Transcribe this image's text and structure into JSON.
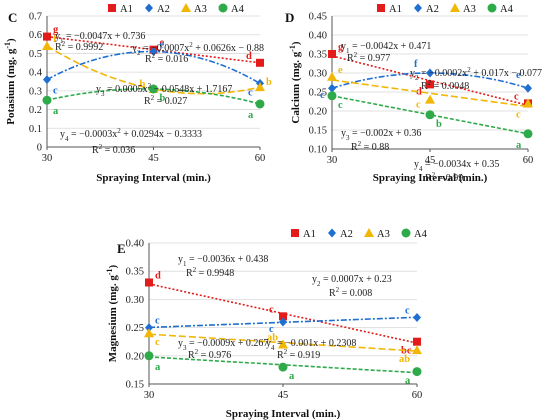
{
  "colors": {
    "A1": "#e31b1b",
    "A2": "#1f6fd1",
    "A3": "#f2b705",
    "A4": "#2eaa4a",
    "axis": "#555555",
    "grid": "#d9d9d9"
  },
  "chart_data": [
    {
      "panel": "C",
      "type": "line",
      "x": [
        30,
        45,
        60
      ],
      "xlabel": "Spraying Interval (min.)",
      "ylabel": "Potasium (mg. g-1)",
      "ylim": [
        0,
        0.7
      ],
      "yticks": [
        "0",
        "0.1",
        "0.2",
        "0.3",
        "0.4",
        "0.5",
        "0.6",
        "0.7"
      ],
      "xticks": [
        "30",
        "45",
        "60"
      ],
      "grid": true,
      "legend": "top-right",
      "series": [
        {
          "name": "A1",
          "marker": "square",
          "values": [
            0.59,
            0.52,
            0.45
          ],
          "letters": [
            "g",
            "e",
            "d"
          ],
          "trend": "linear"
        },
        {
          "name": "A2",
          "marker": "diamond",
          "values": [
            0.36,
            0.51,
            0.34
          ],
          "letters": [
            "c",
            "e",
            "c"
          ],
          "trend": "poly"
        },
        {
          "name": "A3",
          "marker": "triangle",
          "values": [
            0.54,
            0.31,
            0.32
          ],
          "letters": [
            "f",
            "b",
            "b"
          ],
          "trend": "poly"
        },
        {
          "name": "A4",
          "marker": "circle",
          "values": [
            0.25,
            0.31,
            0.23
          ],
          "letters": [
            "a",
            "b",
            "a"
          ],
          "trend": "poly"
        }
      ],
      "equations": [
        {
          "eq": "y1 = −0.0047x + 0.736",
          "r2": "R² = 0.9992"
        },
        {
          "eq": "y2 = −0.0007x2 + 0.0626x − 0.88",
          "r2": "R² = 0.016"
        },
        {
          "eq": "y3 = 0.0005x2 − 0.0548x + 1.7167",
          "r2": "R² = 0.027"
        },
        {
          "eq": "y4 = −0.0003x2 + 0.0294x − 0.3333",
          "r2": "R² = 0.036"
        }
      ]
    },
    {
      "panel": "D",
      "type": "line",
      "x": [
        30,
        45,
        60
      ],
      "xlabel": "Spraying Interval (min.)",
      "ylabel": "Calcium (mg. g-1)",
      "ylim": [
        0.1,
        0.45
      ],
      "yticks": [
        "0.10",
        "0.15",
        "0.20",
        "0.25",
        "0.30",
        "0.35",
        "0.40",
        "0.45"
      ],
      "xticks": [
        "30",
        "45",
        "60"
      ],
      "grid": true,
      "legend": "top-right",
      "series": [
        {
          "name": "A1",
          "marker": "square",
          "values": [
            0.35,
            0.27,
            0.22
          ],
          "letters": [
            "g",
            "d",
            "c"
          ],
          "trend": "linear"
        },
        {
          "name": "A2",
          "marker": "diamond",
          "values": [
            0.26,
            0.3,
            0.26
          ],
          "letters": [
            "c",
            "f",
            "e"
          ],
          "trend": "poly"
        },
        {
          "name": "A3",
          "marker": "triangle",
          "values": [
            0.29,
            0.23,
            0.22
          ],
          "letters": [
            "e",
            "c",
            "c"
          ],
          "trend": "linear"
        },
        {
          "name": "A4",
          "marker": "circle",
          "values": [
            0.24,
            0.19,
            0.14
          ],
          "letters": [
            "c",
            "b",
            "a"
          ],
          "trend": "linear"
        }
      ],
      "equations": [
        {
          "eq": "y1 = −0.0042x + 0.471",
          "r2": "R² = 0.977"
        },
        {
          "eq": "y2 = −0.0002x2 + 0.017x − 0.077",
          "r2": "R² = 0.0048"
        },
        {
          "eq": "y3 = −0.002x + 0.36",
          "r2": "R² = 0.88"
        },
        {
          "eq": "y4 = −0.0034x + 0.35",
          "r2": "R² = 0.99"
        }
      ]
    },
    {
      "panel": "E",
      "type": "line",
      "x": [
        30,
        45,
        60
      ],
      "xlabel": "Spraying Interval (min.)",
      "ylabel": "Magnesium (mg. g-1)",
      "ylim": [
        0.15,
        0.4
      ],
      "yticks": [
        "0.15",
        "0.20",
        "0.25",
        "0.30",
        "0.35",
        "0.40"
      ],
      "xticks": [
        "30",
        "45",
        "60"
      ],
      "grid": true,
      "legend": "top-right",
      "series": [
        {
          "name": "A1",
          "marker": "square",
          "values": [
            0.33,
            0.27,
            0.225
          ],
          "letters": [
            "d",
            "c",
            "bc"
          ],
          "trend": "linear"
        },
        {
          "name": "A2",
          "marker": "diamond",
          "values": [
            0.25,
            0.26,
            0.268
          ],
          "letters": [
            "c",
            "c",
            "c"
          ],
          "trend": "linear"
        },
        {
          "name": "A3",
          "marker": "triangle",
          "values": [
            0.24,
            0.22,
            0.21
          ],
          "letters": [
            "c",
            "ab",
            "ab"
          ],
          "trend": "linear"
        },
        {
          "name": "A4",
          "marker": "circle",
          "values": [
            0.2,
            0.18,
            0.172
          ],
          "letters": [
            "a",
            "a",
            "a"
          ],
          "trend": "linear"
        }
      ],
      "equations": [
        {
          "eq": "y1 = −0.0036x + 0.438",
          "r2": "R² = 0.9948"
        },
        {
          "eq": "y2 = 0.0007x + 0.23",
          "r2": "R² = 0.008"
        },
        {
          "eq": "y3 = −0.0009x + 0.267",
          "r2": "R² = 0.976"
        },
        {
          "eq": "y4 = −0.001x + 0.2308",
          "r2": "R² = 0.919"
        }
      ]
    }
  ]
}
